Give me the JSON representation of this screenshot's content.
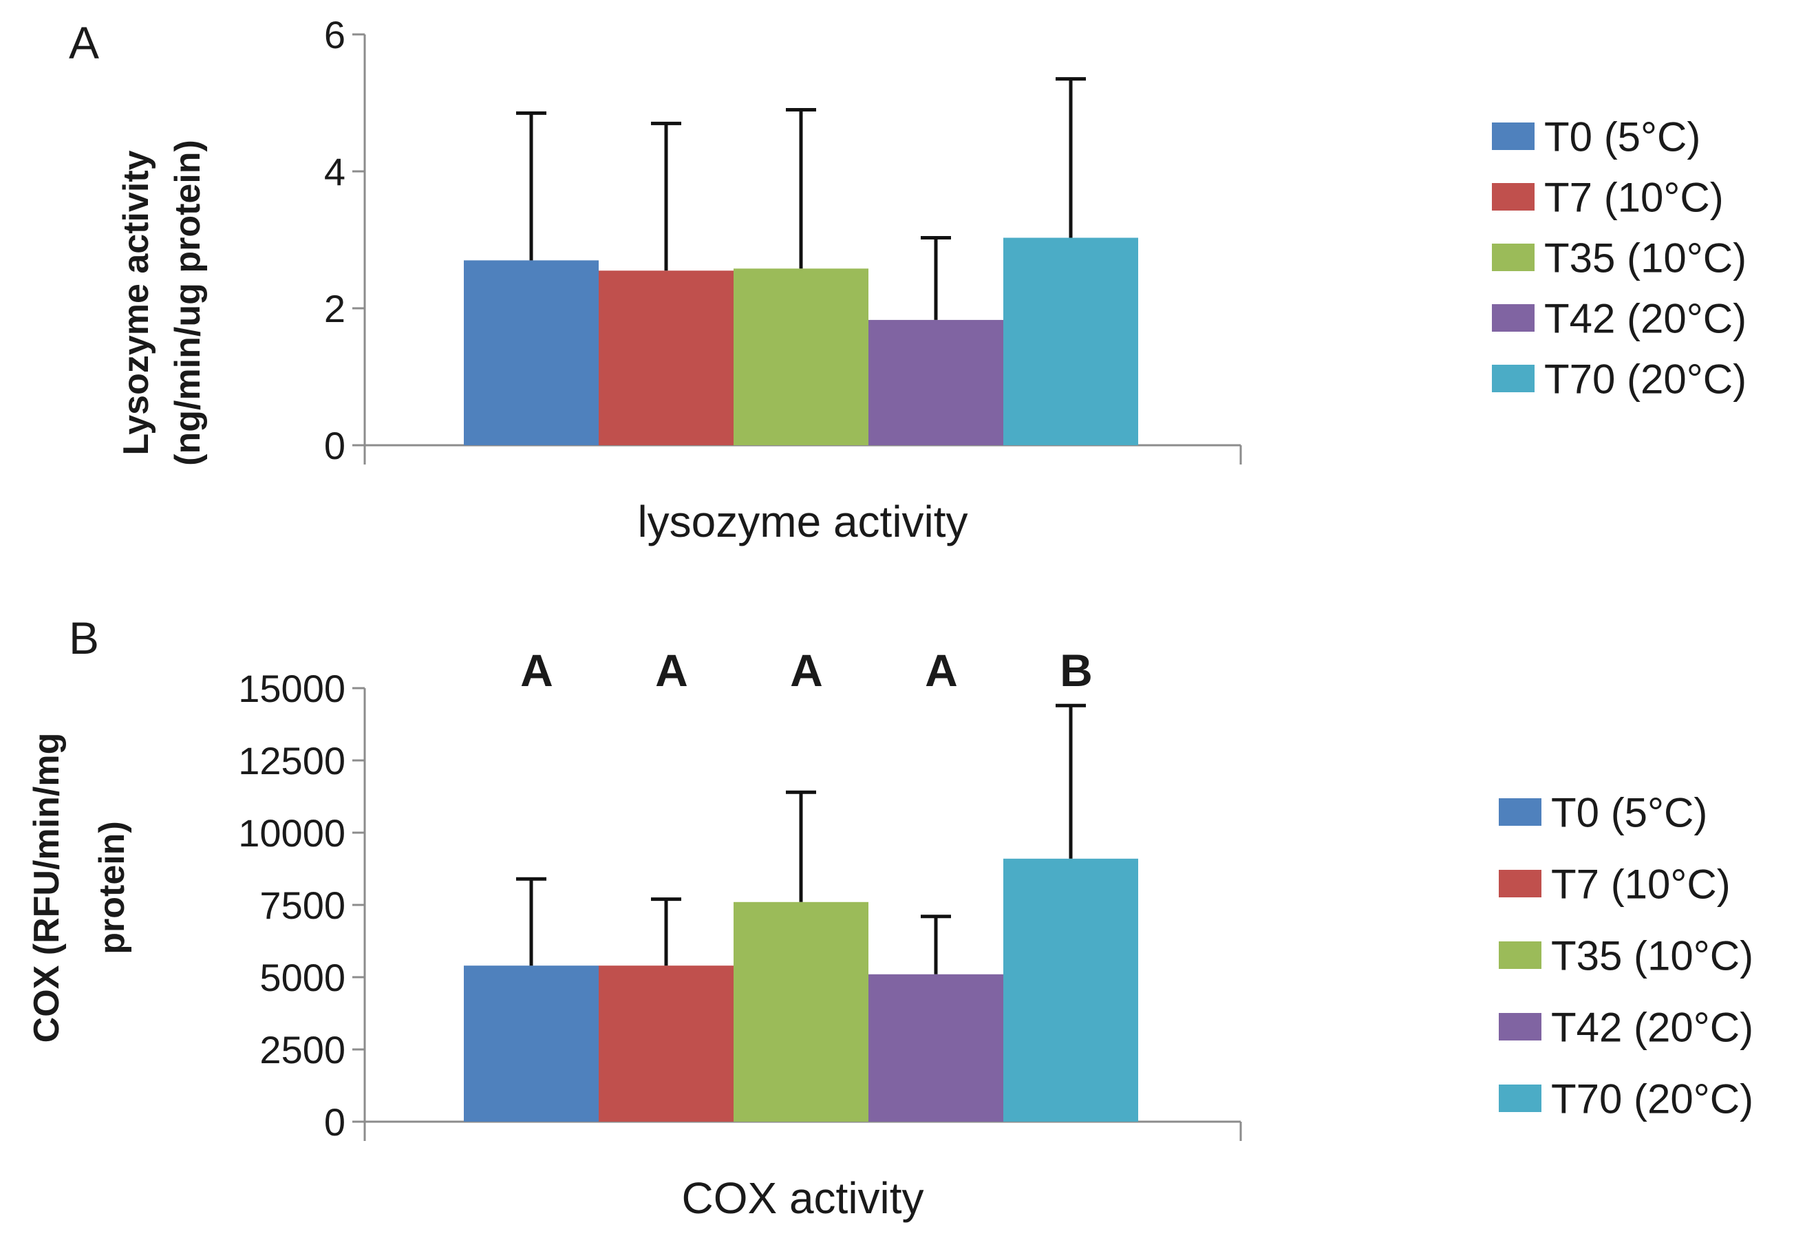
{
  "colors": [
    "#4f81bd",
    "#c0504d",
    "#9bbb59",
    "#8064a2",
    "#4bacc6"
  ],
  "chart_data": [
    {
      "type": "bar",
      "panel_label": "A",
      "categories": [
        "T0 (5°C)",
        "T7 (10°C)",
        "T35 (10°C)",
        "T42 (20°C)",
        "T70 (20°C)"
      ],
      "values": [
        2.7,
        2.55,
        2.58,
        1.83,
        3.03
      ],
      "error_upper": [
        4.85,
        4.7,
        4.9,
        3.03,
        5.35
      ],
      "ylabel_line1": "Lysozyme activity",
      "ylabel_line2": "(ng/min/ug protein)",
      "xlabel": "lysozyme activity",
      "ylim": [
        0,
        6
      ],
      "yticks": [
        "0",
        "2",
        "4",
        "6"
      ],
      "ytick_values": [
        0,
        2,
        4,
        6
      ],
      "significance": [],
      "legend": [
        "T0 (5°C)",
        "T7 (10°C)",
        "T35 (10°C)",
        "T42 (20°C)",
        "T70 (20°C)"
      ],
      "legend_position": "right",
      "grid": false
    },
    {
      "type": "bar",
      "panel_label": "B",
      "categories": [
        "T0 (5°C)",
        "T7 (10°C)",
        "T35 (10°C)",
        "T42 (20°C)",
        "T70 (20°C)"
      ],
      "values": [
        5400,
        5400,
        7600,
        5100,
        9100
      ],
      "error_upper": [
        8400,
        7700,
        11400,
        7100,
        14400
      ],
      "ylabel_line1": "COX (RFU/min/mg",
      "ylabel_line2": "protein)",
      "xlabel": "COX activity",
      "ylim": [
        0,
        15000
      ],
      "yticks": [
        "0",
        "2500",
        "5000",
        "7500",
        "10000",
        "12500",
        "15000"
      ],
      "ytick_values": [
        0,
        2500,
        5000,
        7500,
        10000,
        12500,
        15000
      ],
      "significance": [
        "A",
        "A",
        "A",
        "A",
        "B"
      ],
      "legend": [
        "T0 (5°C)",
        "T7 (10°C)",
        "T35 (10°C)",
        "T42 (20°C)",
        "T70 (20°C)"
      ],
      "legend_position": "right",
      "grid": false
    }
  ]
}
